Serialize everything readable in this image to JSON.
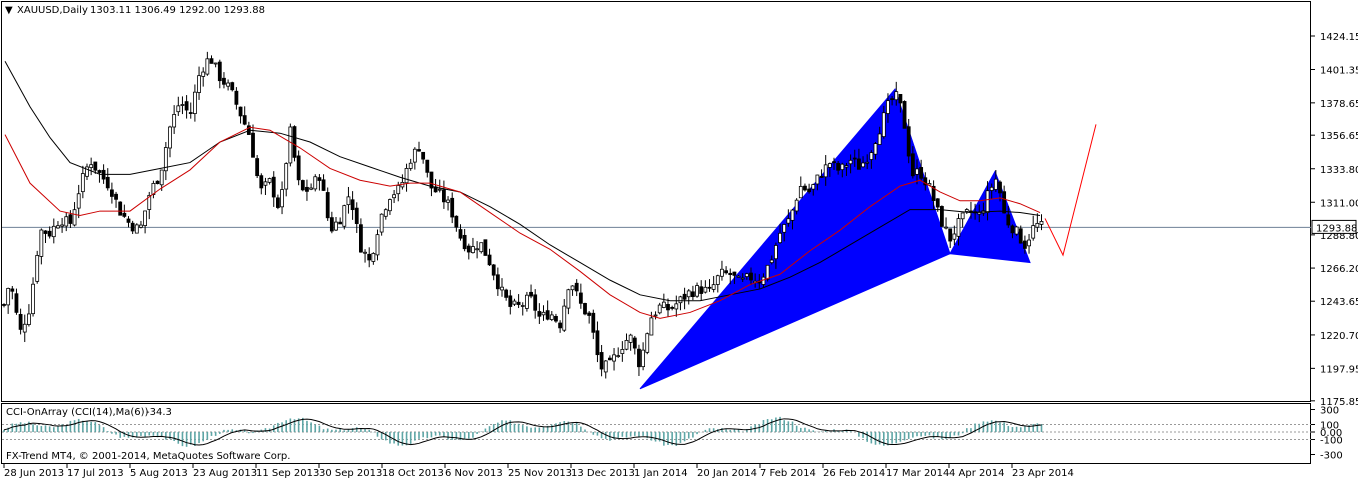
{
  "header": {
    "symbol_timeframe": "XAUUSD,Daily",
    "ohlc": "1303.11 1306.49 1292.00 1293.88"
  },
  "indicator": {
    "title": "CCI-OnArray (CCI(14),Ma(6))",
    "value": "-34.3",
    "copyright": "FX-Trend MT4, © 2001-2014, MetaQuotes Software Corp."
  },
  "colors": {
    "candle": "#000000",
    "ma_fast": "#cc0000",
    "ma_slow": "#000000",
    "pattern": "#0000ff",
    "projection": "#ff0000",
    "cci_hist": "#5fa6a6",
    "price_line": "#6e8096",
    "price_badge_bg": "#ffffff"
  },
  "chart_data": {
    "type": "candlestick",
    "price_axis": {
      "ticks": [
        1175.85,
        1197.95,
        1220.7,
        1243.65,
        1266.2,
        1288.8,
        1311.0,
        1333.8,
        1356.65,
        1378.65,
        1401.35,
        1424.15
      ],
      "range": [
        1175.0,
        1440.0
      ],
      "current_price": "1293.88"
    },
    "cci_axis": {
      "ticks": [
        "300",
        "100",
        "0.00",
        "-100",
        "-300"
      ]
    },
    "time_axis": {
      "labels": [
        "28 Jun 2013",
        "17 Jul 2013",
        "5 Aug 2013",
        "23 Aug 2013",
        "11 Sep 2013",
        "30 Sep 2013",
        "18 Oct 2013",
        "6 Nov 2013",
        "25 Nov 2013",
        "13 Dec 2013",
        "1 Jan 2014",
        "20 Jan 2014",
        "7 Feb 2014",
        "26 Feb 2014",
        "17 Mar 2014",
        "4 Apr 2014",
        "23 Apr 2014"
      ]
    },
    "close_path": [
      [
        0,
        1230
      ],
      [
        10,
        1258
      ],
      [
        20,
        1222
      ],
      [
        30,
        1240
      ],
      [
        40,
        1292
      ],
      [
        50,
        1290
      ],
      [
        60,
        1300
      ],
      [
        70,
        1296
      ],
      [
        80,
        1322
      ],
      [
        90,
        1340
      ],
      [
        100,
        1330
      ],
      [
        110,
        1322
      ],
      [
        120,
        1305
      ],
      [
        130,
        1296
      ],
      [
        140,
        1292
      ],
      [
        150,
        1318
      ],
      [
        160,
        1330
      ],
      [
        170,
        1362
      ],
      [
        180,
        1380
      ],
      [
        190,
        1370
      ],
      [
        200,
        1400
      ],
      [
        210,
        1410
      ],
      [
        220,
        1396
      ],
      [
        230,
        1388
      ],
      [
        240,
        1372
      ],
      [
        250,
        1356
      ],
      [
        260,
        1318
      ],
      [
        270,
        1325
      ],
      [
        280,
        1305
      ],
      [
        290,
        1360
      ],
      [
        300,
        1318
      ],
      [
        310,
        1320
      ],
      [
        320,
        1330
      ],
      [
        330,
        1292
      ],
      [
        340,
        1300
      ],
      [
        350,
        1318
      ],
      [
        360,
        1282
      ],
      [
        370,
        1270
      ],
      [
        380,
        1300
      ],
      [
        390,
        1316
      ],
      [
        400,
        1320
      ],
      [
        410,
        1340
      ],
      [
        420,
        1350
      ],
      [
        430,
        1322
      ],
      [
        440,
        1316
      ],
      [
        450,
        1308
      ],
      [
        460,
        1288
      ],
      [
        470,
        1278
      ],
      [
        480,
        1284
      ],
      [
        490,
        1270
      ],
      [
        500,
        1252
      ],
      [
        510,
        1240
      ],
      [
        520,
        1240
      ],
      [
        530,
        1246
      ],
      [
        540,
        1232
      ],
      [
        550,
        1236
      ],
      [
        560,
        1228
      ],
      [
        570,
        1260
      ],
      [
        580,
        1242
      ],
      [
        590,
        1232
      ],
      [
        600,
        1198
      ],
      [
        610,
        1200
      ],
      [
        620,
        1212
      ],
      [
        630,
        1220
      ],
      [
        640,
        1200
      ],
      [
        650,
        1232
      ],
      [
        660,
        1240
      ],
      [
        670,
        1238
      ],
      [
        680,
        1244
      ],
      [
        690,
        1250
      ],
      [
        700,
        1252
      ],
      [
        710,
        1250
      ],
      [
        720,
        1262
      ],
      [
        730,
        1262
      ],
      [
        740,
        1256
      ],
      [
        750,
        1260
      ],
      [
        760,
        1258
      ],
      [
        770,
        1270
      ],
      [
        780,
        1290
      ],
      [
        790,
        1300
      ],
      [
        800,
        1322
      ],
      [
        810,
        1318
      ],
      [
        820,
        1330
      ],
      [
        830,
        1338
      ],
      [
        840,
        1332
      ],
      [
        850,
        1340
      ],
      [
        860,
        1335
      ],
      [
        870,
        1345
      ],
      [
        880,
        1362
      ],
      [
        890,
        1380
      ],
      [
        898,
        1383
      ],
      [
        905,
        1362
      ],
      [
        912,
        1330
      ],
      [
        920,
        1332
      ],
      [
        930,
        1320
      ],
      [
        940,
        1300
      ],
      [
        950,
        1286
      ],
      [
        960,
        1298
      ],
      [
        970,
        1305
      ],
      [
        980,
        1302
      ],
      [
        990,
        1320
      ],
      [
        997,
        1328
      ],
      [
        1005,
        1300
      ],
      [
        1015,
        1292
      ],
      [
        1025,
        1282
      ],
      [
        1035,
        1296
      ],
      [
        1043,
        1294
      ]
    ],
    "ma_fast": [
      [
        5,
        1357
      ],
      [
        30,
        1324
      ],
      [
        60,
        1305
      ],
      [
        80,
        1302
      ],
      [
        100,
        1305
      ],
      [
        130,
        1305
      ],
      [
        160,
        1320
      ],
      [
        190,
        1333
      ],
      [
        220,
        1352
      ],
      [
        250,
        1362
      ],
      [
        270,
        1360
      ],
      [
        300,
        1348
      ],
      [
        330,
        1334
      ],
      [
        360,
        1326
      ],
      [
        390,
        1322
      ],
      [
        410,
        1324
      ],
      [
        430,
        1324
      ],
      [
        460,
        1318
      ],
      [
        490,
        1304
      ],
      [
        520,
        1290
      ],
      [
        550,
        1279
      ],
      [
        580,
        1264
      ],
      [
        610,
        1248
      ],
      [
        640,
        1236
      ],
      [
        660,
        1232
      ],
      [
        690,
        1236
      ],
      [
        720,
        1244
      ],
      [
        750,
        1255
      ],
      [
        780,
        1262
      ],
      [
        810,
        1278
      ],
      [
        840,
        1292
      ],
      [
        870,
        1308
      ],
      [
        900,
        1322
      ],
      [
        920,
        1326
      ],
      [
        940,
        1318
      ],
      [
        960,
        1312
      ],
      [
        980,
        1312
      ],
      [
        1000,
        1314
      ],
      [
        1020,
        1310
      ],
      [
        1040,
        1304
      ]
    ],
    "ma_slow": [
      [
        5,
        1407
      ],
      [
        30,
        1376
      ],
      [
        50,
        1355
      ],
      [
        70,
        1338
      ],
      [
        100,
        1330
      ],
      [
        130,
        1330
      ],
      [
        160,
        1334
      ],
      [
        190,
        1338
      ],
      [
        220,
        1352
      ],
      [
        250,
        1360
      ],
      [
        280,
        1358
      ],
      [
        310,
        1352
      ],
      [
        340,
        1342
      ],
      [
        370,
        1335
      ],
      [
        400,
        1328
      ],
      [
        430,
        1322
      ],
      [
        460,
        1318
      ],
      [
        490,
        1308
      ],
      [
        520,
        1296
      ],
      [
        550,
        1282
      ],
      [
        580,
        1270
      ],
      [
        610,
        1258
      ],
      [
        640,
        1248
      ],
      [
        670,
        1244
      ],
      [
        700,
        1244
      ],
      [
        730,
        1248
      ],
      [
        760,
        1252
      ],
      [
        790,
        1260
      ],
      [
        820,
        1270
      ],
      [
        850,
        1282
      ],
      [
        880,
        1294
      ],
      [
        910,
        1306
      ],
      [
        940,
        1306
      ],
      [
        970,
        1304
      ],
      [
        1000,
        1305
      ],
      [
        1020,
        1304
      ],
      [
        1040,
        1302
      ]
    ],
    "pattern": {
      "triangle_1": [
        [
          640,
          1184
        ],
        [
          895,
          1388
        ],
        [
          950,
          1276
        ]
      ],
      "triangle_2": [
        [
          950,
          1276
        ],
        [
          995,
          1332
        ],
        [
          1030,
          1270
        ]
      ]
    },
    "projection": [
      [
        1045,
        1300
      ],
      [
        1063,
        1275
      ],
      [
        1096,
        1364
      ]
    ]
  }
}
